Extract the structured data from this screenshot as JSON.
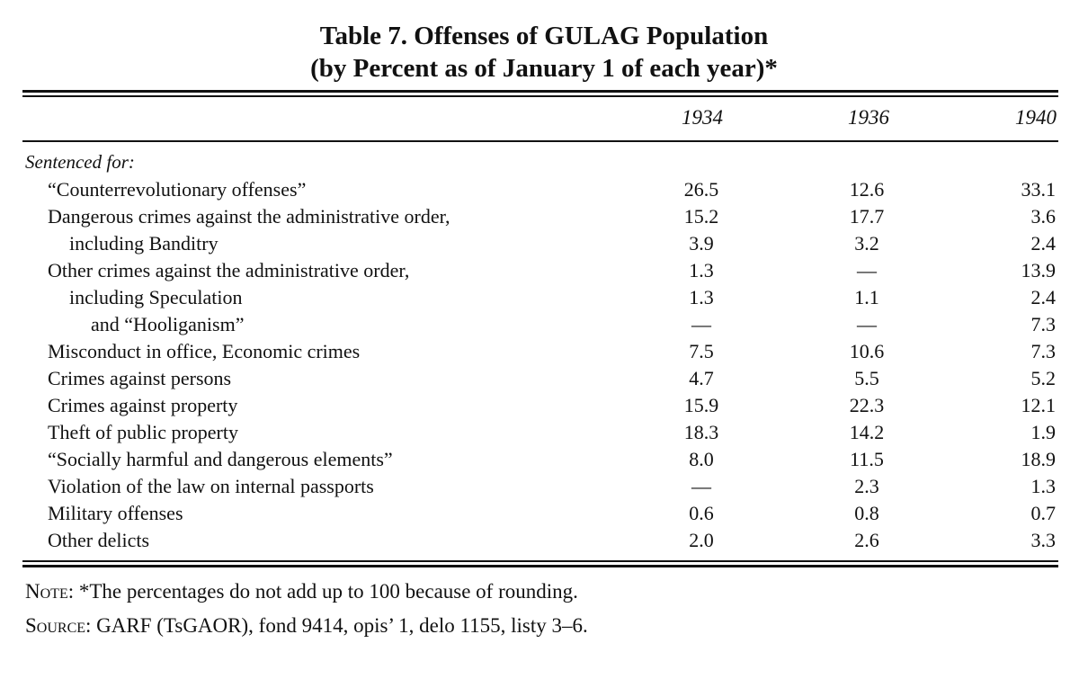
{
  "table": {
    "title": "Table 7.  Offenses of GULAG Population",
    "subtitle": "(by Percent as of January 1 of each year)*",
    "years": [
      "1934",
      "1936",
      "1940"
    ],
    "section_label": "Sentenced for:",
    "rows": [
      {
        "label": "“Counterrevolutionary offenses”",
        "v1934": "26.5",
        "v1936": "12.6",
        "v1940": "33.1"
      },
      {
        "label": "Dangerous crimes against the administrative order,",
        "v1934": "15.2",
        "v1936": "17.7",
        "v1940": "3.6"
      },
      {
        "label": "including Banditry",
        "v1934": "3.9",
        "v1936": "3.2",
        "v1940": "2.4"
      },
      {
        "label": "Other crimes against the administrative order,",
        "v1934": "1.3",
        "v1936": "—",
        "v1940": "13.9"
      },
      {
        "label": "including Speculation",
        "v1934": "1.3",
        "v1936": "1.1",
        "v1940": "2.4"
      },
      {
        "label": "and “Hooliganism”",
        "v1934": "—",
        "v1936": "—",
        "v1940": "7.3"
      },
      {
        "label": "Misconduct in office, Economic crimes",
        "v1934": "7.5",
        "v1936": "10.6",
        "v1940": "7.3"
      },
      {
        "label": "Crimes against persons",
        "v1934": "4.7",
        "v1936": "5.5",
        "v1940": "5.2"
      },
      {
        "label": "Crimes against property",
        "v1934": "15.9",
        "v1936": "22.3",
        "v1940": "12.1"
      },
      {
        "label": "Theft of public property",
        "v1934": "18.3",
        "v1936": "14.2",
        "v1940": "1.9"
      },
      {
        "label": "“Socially harmful and dangerous elements”",
        "v1934": "8.0",
        "v1936": "11.5",
        "v1940": "18.9"
      },
      {
        "label": "Violation of the law on internal passports",
        "v1934": "—",
        "v1936": "2.3",
        "v1940": "1.3"
      },
      {
        "label": "Military offenses",
        "v1934": "0.6",
        "v1936": "0.8",
        "v1940": "0.7"
      },
      {
        "label": "Other delicts",
        "v1934": "2.0",
        "v1936": "2.6",
        "v1940": "3.3"
      }
    ]
  },
  "notes": {
    "note_lead": "Note:",
    "note_text": "*The percentages do not add up to 100 because of rounding.",
    "source_lead": "Source:",
    "source_text": "GARF (TsGAOR), fond 9414, opis’ 1, delo 1155, listy 3–6."
  }
}
